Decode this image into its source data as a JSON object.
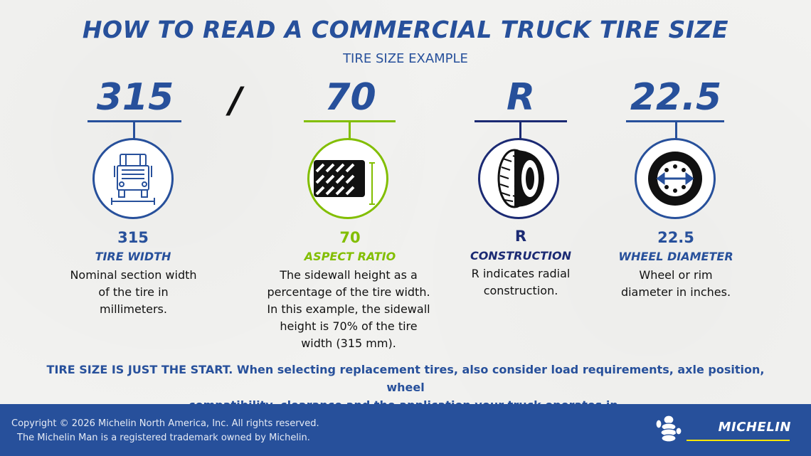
{
  "title": "HOW TO READ A COMMERCIAL TRUCK TIRE SIZE",
  "subtitle": "TIRE SIZE EXAMPLE",
  "separator": "/",
  "segments": [
    {
      "big": "315",
      "value": "315",
      "label": "TIRE WIDTH",
      "desc": [
        "Nominal section width",
        "of the tire in",
        "millimeters."
      ],
      "icon": "truck-front-icon",
      "color": "#27509b"
    },
    {
      "big": "70",
      "value": "70",
      "label": "ASPECT RATIO",
      "desc": [
        "The sidewall height as a",
        "percentage of the tire width.",
        "In this example, the sidewall",
        "height is 70% of the tire",
        "width (315 mm)."
      ],
      "icon": "tire-sidewall-icon",
      "color": "#82be00"
    },
    {
      "big": "R",
      "value": "R",
      "label": "CONSTRUCTION",
      "desc": [
        "R indicates radial",
        "construction."
      ],
      "icon": "tire-tread-icon",
      "color": "#1b2a73"
    },
    {
      "big": "22.5",
      "value": "22.5",
      "label": "WHEEL DIAMETER",
      "desc": [
        "Wheel or rim",
        "diameter in inches."
      ],
      "icon": "wheel-icon",
      "color": "#27509b"
    }
  ],
  "note": {
    "strong": "TIRE SIZE IS JUST THE START.",
    "line1": " When selecting replacement tires, also consider load requirements, axle position, wheel",
    "line2": "compatibility, clearance and the application your truck operates in."
  },
  "footer": {
    "copyright": "Copyright © 2026 Michelin North America, Inc. All rights reserved.",
    "trademark": "The Michelin Man is a registered trademark owned by Michelin.",
    "brand": "MICHELIN"
  }
}
